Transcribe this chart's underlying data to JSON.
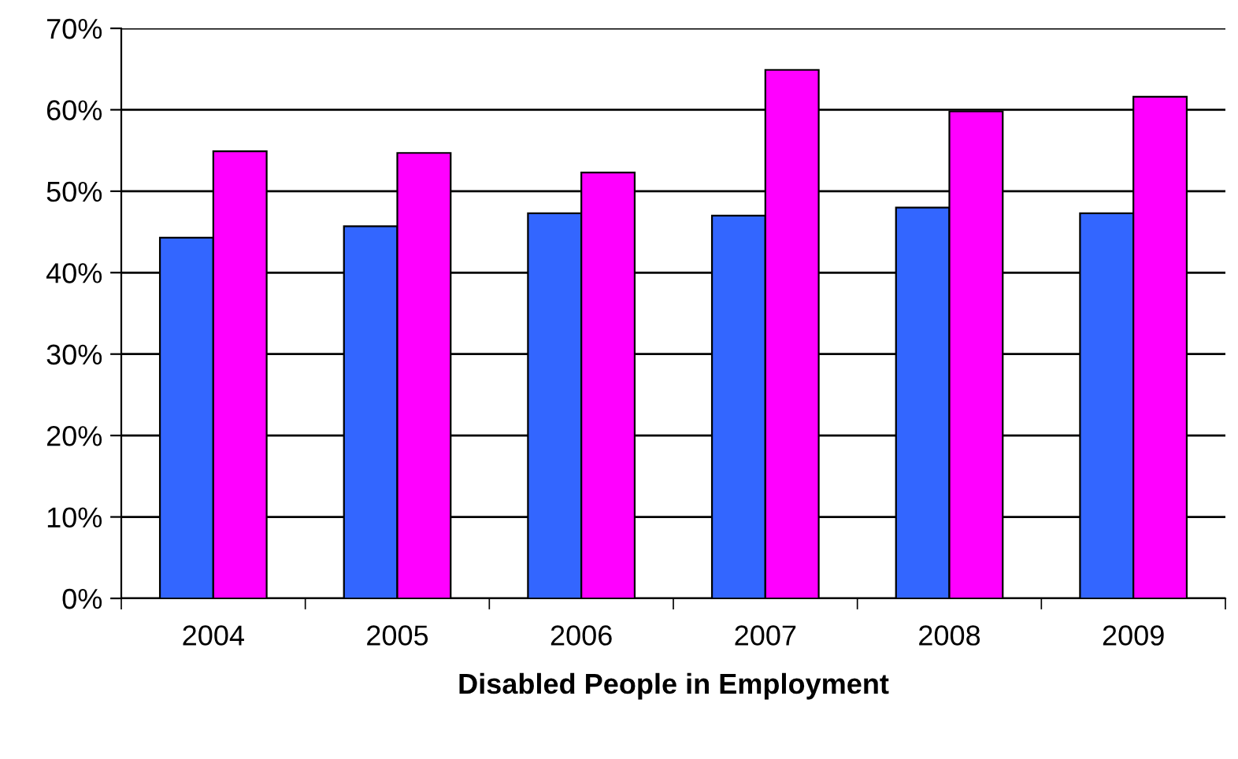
{
  "chart_data": {
    "type": "bar",
    "xlabel": "Disabled People in Employment",
    "categories": [
      "2004",
      "2005",
      "2006",
      "2007",
      "2008",
      "2009"
    ],
    "series": [
      {
        "color": "#3366ff",
        "values": [
          44.3,
          45.7,
          47.3,
          47.0,
          48.0,
          47.3
        ]
      },
      {
        "color": "#ff00ff",
        "values": [
          54.9,
          54.7,
          52.3,
          64.9,
          59.8,
          61.6
        ]
      }
    ],
    "ylim": [
      0,
      70
    ],
    "yticks": [
      {
        "value": 0,
        "label": "0%"
      },
      {
        "value": 10,
        "label": "10%"
      },
      {
        "value": 20,
        "label": "20%"
      },
      {
        "value": 30,
        "label": "30%"
      },
      {
        "value": 40,
        "label": "40%"
      },
      {
        "value": 50,
        "label": "50%"
      },
      {
        "value": 60,
        "label": "60%"
      },
      {
        "value": 70,
        "label": "70%"
      }
    ],
    "grid": "y"
  }
}
